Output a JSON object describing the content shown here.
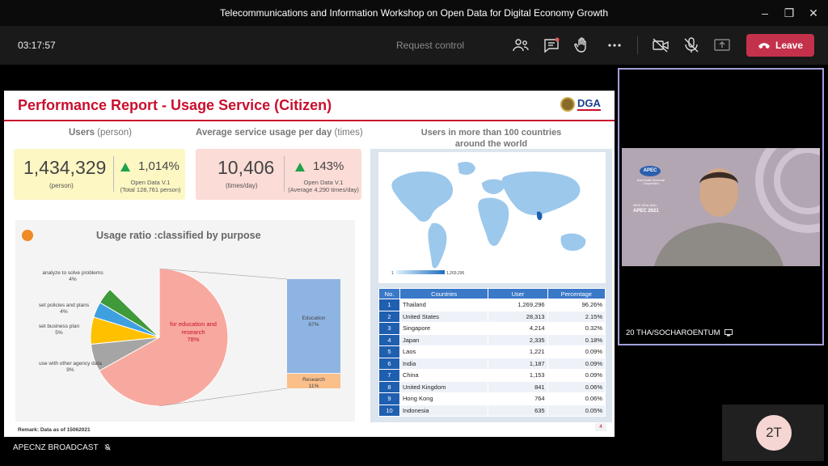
{
  "window": {
    "title": "Telecommunications and Information Workshop on Open Data for Digital Economy Growth"
  },
  "toolbar": {
    "timer": "03:17:57",
    "request_control": "Request control",
    "leave_label": "Leave"
  },
  "slide": {
    "title": "Performance Report - Usage Service (Citizen)",
    "logo_text": "DGA",
    "users": {
      "heading": "Users",
      "heading_unit": "(person)",
      "value": "1,434,329",
      "unit": "(person)",
      "growth": "1,014%",
      "note1": "Open Data V.1",
      "note2": "(Total 128,761 person)"
    },
    "avg": {
      "heading": "Average service usage per day",
      "heading_unit": "(times)",
      "value": "10,406",
      "unit": "(times/day)",
      "growth": "143%",
      "note1": "Open Data V.1",
      "note2": "(Average 4,290 times/day)"
    },
    "world": {
      "heading_line1": "Users in more than 100 countries",
      "heading_line2": "around the world",
      "legend_min": "1",
      "legend_max": "1,269,296"
    },
    "ratio": {
      "title": "Usage ratio :classified by purpose",
      "labels": [
        {
          "text": "analyze to solve problems",
          "pct": "4%"
        },
        {
          "text": "set policies and plans",
          "pct": "4%"
        },
        {
          "text": "set business plan",
          "pct": "5%"
        },
        {
          "text": "use with other agency data",
          "pct": "9%"
        },
        {
          "text": "for education and",
          "text2": "research",
          "pct": "78%"
        }
      ],
      "bar": {
        "education_label": "Education",
        "education_pct": "67%",
        "research_label": "Research",
        "research_pct": "11%"
      },
      "colors": {
        "education": "#f8a99f",
        "analyze": "#3f9a3a",
        "policies": "#3fa0e0",
        "business": "#ffc000",
        "agency": "#a5a5a5"
      }
    },
    "remark": "Remark: Data as of 15062021",
    "page": "4",
    "table": {
      "headers": [
        "No.",
        "Countries",
        "User",
        "Percentage"
      ],
      "rows": [
        [
          "1",
          "Thailand",
          "1,269,296",
          "96.26%"
        ],
        [
          "2",
          "United States",
          "28,313",
          "2.15%"
        ],
        [
          "3",
          "Singapore",
          "4,214",
          "0.32%"
        ],
        [
          "4",
          "Japan",
          "2,335",
          "0.18%"
        ],
        [
          "5",
          "Laos",
          "1,221",
          "0.09%"
        ],
        [
          "6",
          "India",
          "1,187",
          "0.09%"
        ],
        [
          "7",
          "China",
          "1,153",
          "0.09%"
        ],
        [
          "8",
          "United Kingdom",
          "841",
          "0.06%"
        ],
        [
          "9",
          "Hong Kong",
          "764",
          "0.06%"
        ],
        [
          "10",
          "Indonesia",
          "635",
          "0.05%"
        ]
      ]
    }
  },
  "bottom": {
    "broadcast_label": "APECNZ BROADCAST"
  },
  "participant": {
    "name": "20 THA/SOCHAROENTUM",
    "apec_text": "APEC",
    "apec_sub": "Asia-Pacific Economic Cooperation",
    "nz_text": "NEW ZEALAND",
    "apec_year": "APEC 2021"
  },
  "self_avatar": {
    "initials": "2T"
  }
}
